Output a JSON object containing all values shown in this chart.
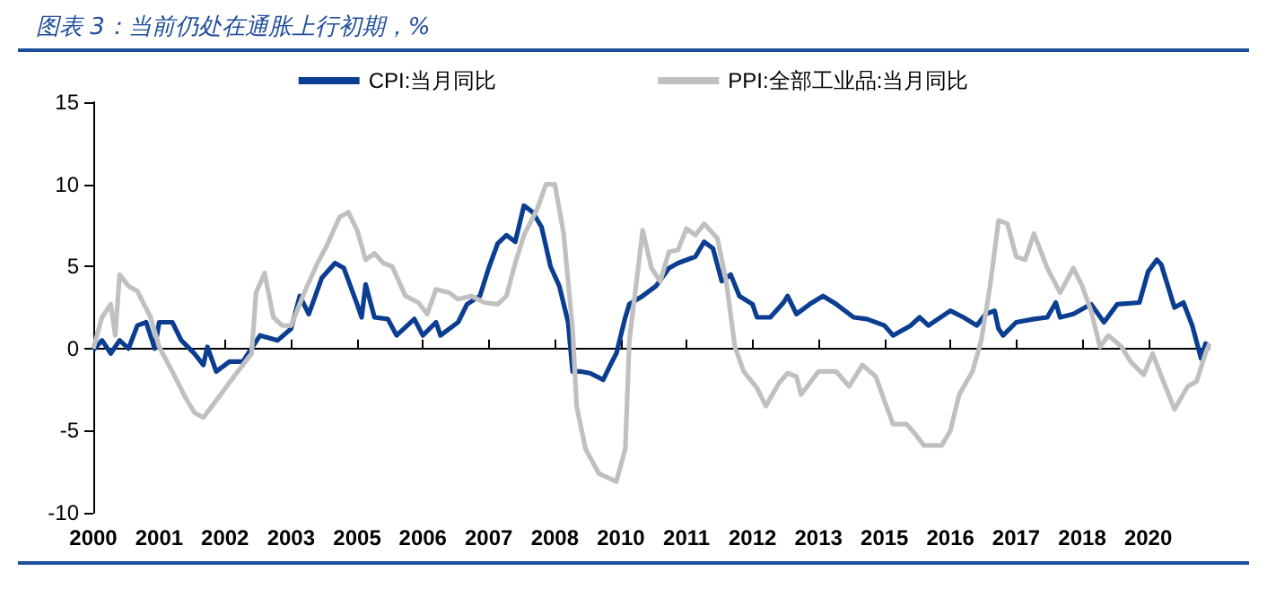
{
  "chart_data": {
    "type": "line",
    "title": "图表 3：当前仍处在通胀上行初期，%",
    "series": [
      {
        "name": "CPI:当月同比",
        "color": "#0b3d91",
        "x": [
          "2000-01",
          "2000-03",
          "2000-05",
          "2000-07",
          "2000-09",
          "2000-11",
          "2001-01",
          "2001-03",
          "2001-04",
          "2001-07",
          "2001-09",
          "2001-12",
          "2002-02",
          "2002-03",
          "2002-05",
          "2002-08",
          "2002-11",
          "2003-03",
          "2003-07",
          "2003-10",
          "2003-12",
          "2004-02",
          "2004-05",
          "2004-08",
          "2004-10",
          "2005-01",
          "2005-02",
          "2005-03",
          "2005-05",
          "2005-08",
          "2005-10",
          "2006-02",
          "2006-04",
          "2006-07",
          "2006-08",
          "2006-12",
          "2007-02",
          "2007-05",
          "2007-07",
          "2007-09",
          "2007-11",
          "2008-01",
          "2008-03",
          "2008-05",
          "2008-07",
          "2008-09",
          "2008-11",
          "2009-01",
          "2009-02",
          "2009-04",
          "2009-06",
          "2009-09",
          "2009-11",
          "2009-12",
          "2010-02",
          "2010-03",
          "2010-06",
          "2010-09",
          "2010-12",
          "2011-02",
          "2011-06",
          "2011-08",
          "2011-10",
          "2011-12",
          "2012-02",
          "2012-04",
          "2012-07",
          "2012-08",
          "2012-11",
          "2013-02",
          "2013-03",
          "2013-05",
          "2013-08",
          "2013-11",
          "2014-02",
          "2014-06",
          "2014-09",
          "2015-01",
          "2015-03",
          "2015-07",
          "2015-09",
          "2015-11",
          "2016-04",
          "2016-07",
          "2016-10",
          "2016-12",
          "2017-02",
          "2017-03",
          "2017-04",
          "2017-07",
          "2017-11",
          "2018-02",
          "2018-04",
          "2018-05",
          "2018-08",
          "2018-12",
          "2019-03",
          "2019-06",
          "2019-11",
          "2020-01",
          "2020-03",
          "2020-04",
          "2020-07",
          "2020-09",
          "2020-11",
          "2021-01",
          "2021-02",
          "2021-03"
        ],
        "values": [
          -0.1,
          0.5,
          -0.3,
          0.5,
          0,
          1.4,
          1.6,
          0,
          1.6,
          1.6,
          0.5,
          -0.3,
          -1.0,
          0.1,
          -1.4,
          -0.8,
          -0.8,
          0.8,
          0.5,
          1.2,
          3.2,
          2.1,
          4.3,
          5.2,
          4.9,
          2.7,
          1.9,
          3.9,
          1.9,
          1.8,
          0.8,
          1.8,
          0.8,
          1.6,
          0.8,
          1.6,
          2.7,
          3.2,
          4.9,
          6.4,
          6.9,
          6.5,
          8.7,
          8.3,
          7.4,
          5.0,
          3.8,
          1.6,
          -1.4,
          -1.4,
          -1.5,
          -1.9,
          -0.8,
          -0.3,
          1.9,
          2.7,
          3.2,
          3.8,
          4.9,
          5.2,
          5.6,
          6.5,
          6.1,
          4.1,
          4.5,
          3.2,
          2.7,
          1.9,
          1.9,
          2.8,
          3.2,
          2.1,
          2.7,
          3.2,
          2.7,
          1.9,
          1.8,
          1.4,
          0.8,
          1.4,
          1.9,
          1.4,
          2.3,
          1.9,
          1.4,
          2.1,
          2.3,
          1.2,
          0.8,
          1.6,
          1.8,
          1.9,
          2.8,
          1.9,
          2.1,
          2.7,
          1.6,
          2.7,
          2.8,
          4.7,
          5.4,
          5.1,
          2.5,
          2.8,
          1.4,
          -0.6,
          0.3,
          0.1
        ]
      },
      {
        "name": "PPI:全部工业品:当月同比",
        "color": "#c0c0c0",
        "x": [
          "2000-01",
          "2000-03",
          "2000-05",
          "2000-06",
          "2000-07",
          "2000-09",
          "2000-11",
          "2001-02",
          "2001-04",
          "2001-07",
          "2001-10",
          "2001-12",
          "2002-02",
          "2002-06",
          "2002-09",
          "2003-01",
          "2003-02",
          "2003-04",
          "2003-06",
          "2003-08",
          "2003-10",
          "2004-01",
          "2004-04",
          "2004-06",
          "2004-09",
          "2004-11",
          "2005-01",
          "2005-03",
          "2005-05",
          "2005-07",
          "2005-09",
          "2005-12",
          "2006-03",
          "2006-05",
          "2006-07",
          "2006-10",
          "2006-12",
          "2007-03",
          "2007-06",
          "2007-09",
          "2007-11",
          "2008-01",
          "2008-03",
          "2008-06",
          "2008-08",
          "2008-10",
          "2008-12",
          "2009-02",
          "2009-03",
          "2009-05",
          "2009-08",
          "2009-12",
          "2010-02",
          "2010-03",
          "2010-05",
          "2010-06",
          "2010-08",
          "2010-10",
          "2010-12",
          "2011-02",
          "2011-04",
          "2011-06",
          "2011-08",
          "2011-11",
          "2012-01",
          "2012-03",
          "2012-05",
          "2012-08",
          "2012-10",
          "2013-01",
          "2013-03",
          "2013-05",
          "2013-06",
          "2013-08",
          "2013-10",
          "2014-02",
          "2014-05",
          "2014-08",
          "2014-11",
          "2015-01",
          "2015-03",
          "2015-06",
          "2015-08",
          "2015-10",
          "2016-02",
          "2016-04",
          "2016-06",
          "2016-09",
          "2016-11",
          "2017-01",
          "2017-03",
          "2017-05",
          "2017-07",
          "2017-09",
          "2017-11",
          "2018-02",
          "2018-05",
          "2018-08",
          "2018-10",
          "2018-12",
          "2019-02",
          "2019-04",
          "2019-07",
          "2019-09",
          "2019-12",
          "2020-02",
          "2020-04",
          "2020-07",
          "2020-10",
          "2020-12",
          "2021-02",
          "2021-03"
        ],
        "values": [
          0,
          1.9,
          2.7,
          0.8,
          4.5,
          3.8,
          3.5,
          1.9,
          0.1,
          -1.4,
          -3.0,
          -3.9,
          -4.2,
          -2.8,
          -1.7,
          -0.3,
          3.4,
          4.6,
          1.9,
          1.4,
          1.4,
          3.4,
          5.2,
          6.2,
          8.0,
          8.3,
          7.2,
          5.4,
          5.8,
          5.2,
          5.0,
          3.2,
          2.8,
          2.1,
          3.6,
          3.4,
          3.0,
          3.2,
          2.8,
          2.7,
          3.2,
          5.2,
          6.9,
          8.5,
          10.0,
          10.0,
          7.0,
          1.2,
          -3.5,
          -6.1,
          -7.6,
          -8.1,
          -6.1,
          0.5,
          4.9,
          7.2,
          4.9,
          4.1,
          5.9,
          6.0,
          7.3,
          6.9,
          7.6,
          6.7,
          4.1,
          0.1,
          -1.4,
          -2.4,
          -3.5,
          -2.1,
          -1.5,
          -1.7,
          -2.8,
          -2.1,
          -1.4,
          -1.4,
          -2.3,
          -1.0,
          -1.7,
          -3.2,
          -4.6,
          -4.6,
          -5.2,
          -5.9,
          -5.9,
          -5.0,
          -2.8,
          -1.4,
          0.5,
          3.8,
          7.8,
          7.6,
          5.6,
          5.4,
          7.0,
          4.9,
          3.4,
          4.9,
          3.8,
          2.3,
          0.1,
          0.8,
          0.1,
          -0.8,
          -1.6,
          -0.3,
          -1.7,
          -3.7,
          -2.3,
          -2.0,
          -0.3,
          0.3
        ]
      }
    ],
    "xlim": [
      "2000-01",
      "2021-03"
    ],
    "xticks": [
      {
        "value": "2000-01",
        "label": "2000"
      },
      {
        "value": "2001-04",
        "label": "2001"
      },
      {
        "value": "2002-07",
        "label": "2002"
      },
      {
        "value": "2003-10",
        "label": "2003"
      },
      {
        "value": "2005-01",
        "label": "2005"
      },
      {
        "value": "2006-04",
        "label": "2006"
      },
      {
        "value": "2007-07",
        "label": "2007"
      },
      {
        "value": "2008-10",
        "label": "2008"
      },
      {
        "value": "2010-01",
        "label": "2010"
      },
      {
        "value": "2011-04",
        "label": "2011"
      },
      {
        "value": "2012-07",
        "label": "2012"
      },
      {
        "value": "2013-10",
        "label": "2013"
      },
      {
        "value": "2015-01",
        "label": "2015"
      },
      {
        "value": "2016-04",
        "label": "2016"
      },
      {
        "value": "2017-07",
        "label": "2017"
      },
      {
        "value": "2018-10",
        "label": "2018"
      },
      {
        "value": "2020-01",
        "label": "2020"
      }
    ],
    "ylim": [
      -10,
      15
    ],
    "yticks": [
      -10,
      -5,
      0,
      5,
      10,
      15
    ],
    "legend": "top",
    "marker": "none",
    "line_style": "solid"
  }
}
